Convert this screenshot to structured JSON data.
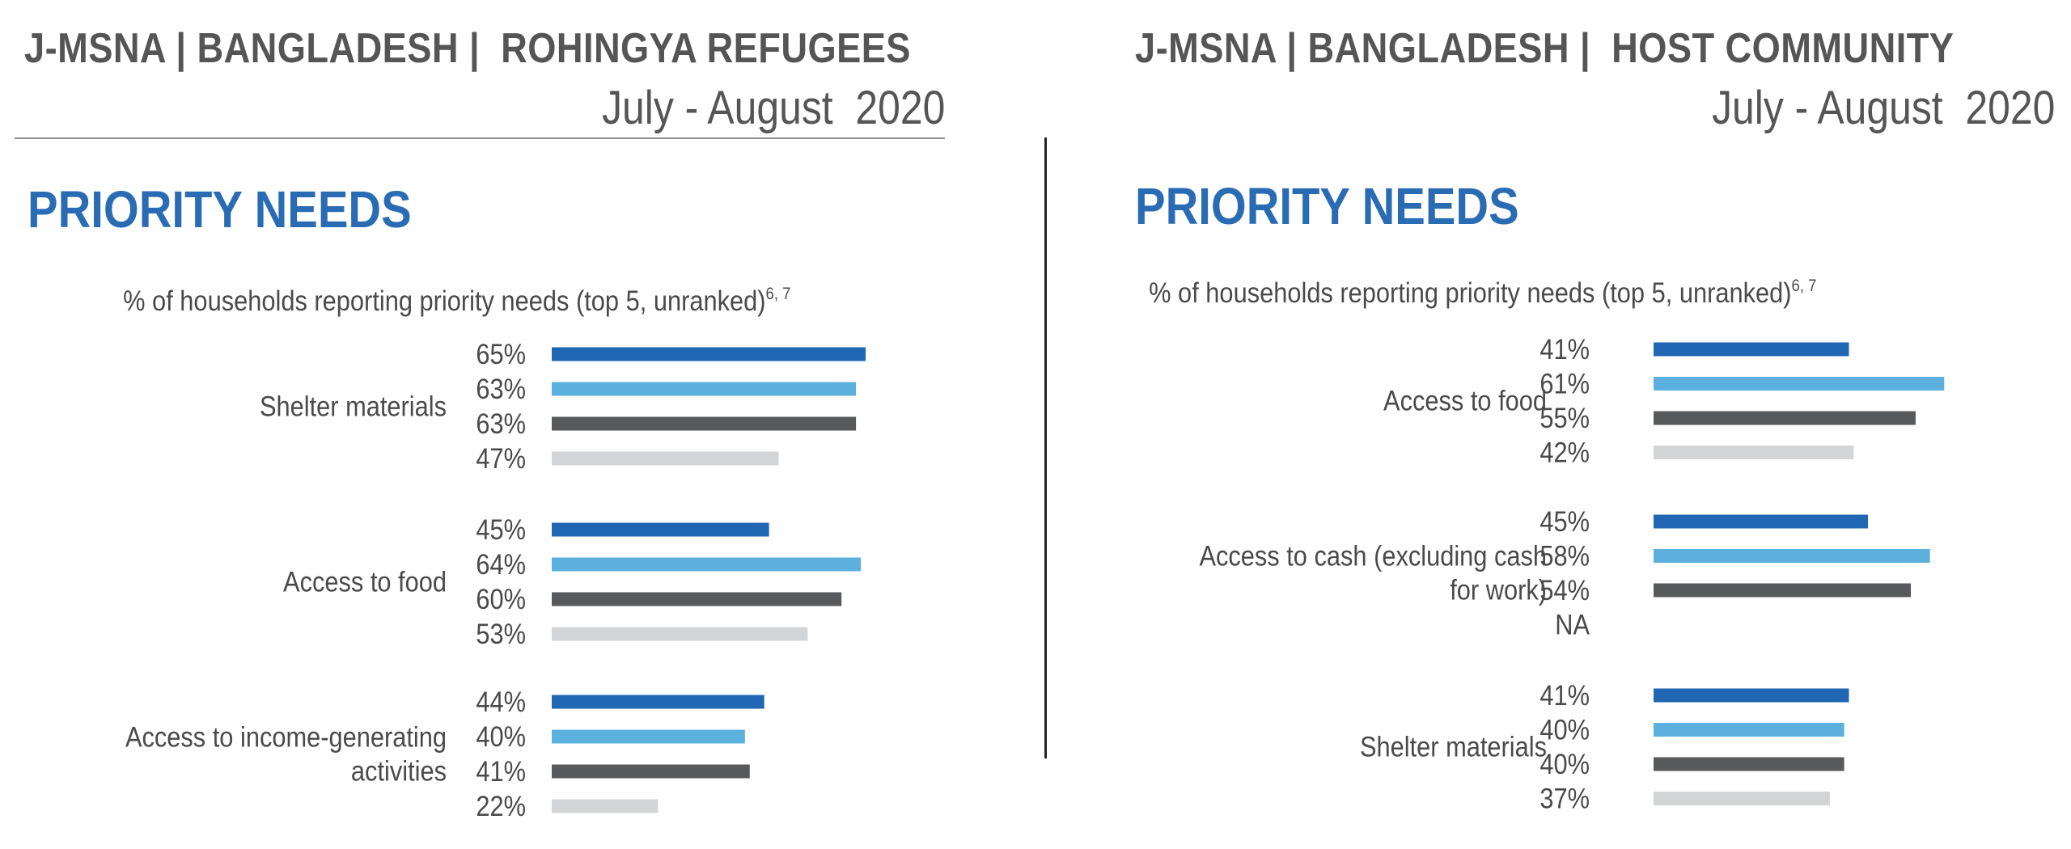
{
  "colors": {
    "heading": "#2a6cb4",
    "series": [
      "#1f66b3",
      "#5cb0dd",
      "#58595b",
      "#d3d4d6"
    ]
  },
  "panels": [
    {
      "header": {
        "title": "J-MSNA | BANGLADESH |  ROHINGYA REFUGEES",
        "date": "July - August  2020"
      },
      "section_title": "PRIORITY NEEDS",
      "subtitle": {
        "text": "% of households reporting priority needs (top 5, unranked)",
        "footnote": "6, 7"
      }
    },
    {
      "header": {
        "title": "J-MSNA | BANGLADESH |  HOST COMMUNITY",
        "date": "July - August  2020"
      },
      "section_title": "PRIORITY NEEDS",
      "subtitle": {
        "text": "% of households reporting priority needs (top 5, unranked)",
        "footnote": "6, 7"
      }
    }
  ],
  "chart_data": [
    {
      "type": "bar",
      "orientation": "horizontal",
      "title": "J-MSNA | BANGLADESH | ROHINGYA REFUGEES — PRIORITY NEEDS",
      "categories": [
        [
          "Shelter materials"
        ],
        [
          "Access to food"
        ],
        [
          "Access to income-generating",
          "activities"
        ]
      ],
      "values": [
        [
          65,
          63,
          63,
          47
        ],
        [
          45,
          64,
          60,
          53
        ],
        [
          44,
          40,
          41,
          22
        ]
      ],
      "unit": "%"
    },
    {
      "type": "bar",
      "orientation": "horizontal",
      "title": "J-MSNA | BANGLADESH | HOST COMMUNITY — PRIORITY NEEDS",
      "categories": [
        [
          "Access to food"
        ],
        [
          "Access to cash (excluding cash",
          "for work)"
        ],
        [
          "Shelter materials"
        ]
      ],
      "values": [
        [
          41,
          61,
          55,
          42
        ],
        [
          45,
          58,
          54,
          null
        ],
        [
          41,
          40,
          40,
          37
        ]
      ],
      "unit": "%",
      "missing_label": "NA"
    }
  ]
}
